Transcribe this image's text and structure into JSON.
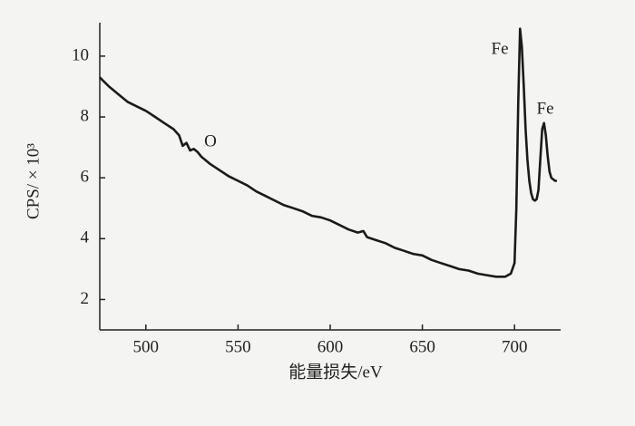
{
  "chart_data": {
    "type": "line",
    "xlabel": "能量损失/eV",
    "ylabel": "CPS/ × 10³",
    "annotations": [
      "O",
      "Fe",
      "Fe"
    ],
    "xlim": [
      475,
      725
    ],
    "xticks": [
      500,
      550,
      600,
      650,
      700
    ],
    "ylim": [
      1,
      11.1
    ],
    "yticks": [
      2,
      4,
      6,
      8,
      10
    ],
    "grid": false,
    "series": [
      {
        "color": "#1a1a1a",
        "x": [
          475,
          480,
          485,
          490,
          495,
          500,
          505,
          510,
          515,
          518,
          520,
          522,
          524,
          526,
          528,
          530,
          535,
          540,
          545,
          550,
          555,
          560,
          565,
          570,
          575,
          580,
          585,
          590,
          595,
          600,
          605,
          610,
          615,
          618,
          620,
          625,
          630,
          635,
          640,
          645,
          650,
          655,
          660,
          665,
          670,
          675,
          680,
          685,
          690,
          695,
          698,
          700,
          701,
          702,
          703,
          704,
          705,
          706,
          707,
          708,
          709,
          710,
          711,
          712,
          713,
          714,
          715,
          716,
          717,
          718,
          719,
          720,
          721,
          722,
          723
        ],
        "values": [
          9.3,
          9.0,
          8.75,
          8.5,
          8.35,
          8.2,
          8.0,
          7.8,
          7.6,
          7.4,
          7.05,
          7.15,
          6.9,
          6.95,
          6.85,
          6.7,
          6.45,
          6.25,
          6.05,
          5.9,
          5.75,
          5.55,
          5.4,
          5.25,
          5.1,
          5.0,
          4.9,
          4.75,
          4.7,
          4.6,
          4.45,
          4.3,
          4.2,
          4.25,
          4.05,
          3.95,
          3.85,
          3.7,
          3.6,
          3.5,
          3.45,
          3.3,
          3.2,
          3.1,
          3.0,
          2.95,
          2.85,
          2.8,
          2.75,
          2.75,
          2.85,
          3.2,
          5.0,
          8.5,
          10.9,
          10.3,
          9.0,
          7.6,
          6.6,
          5.9,
          5.5,
          5.3,
          5.25,
          5.3,
          5.6,
          6.6,
          7.6,
          7.8,
          7.4,
          6.7,
          6.2,
          6.0,
          5.95,
          5.9,
          5.9
        ]
      }
    ]
  }
}
